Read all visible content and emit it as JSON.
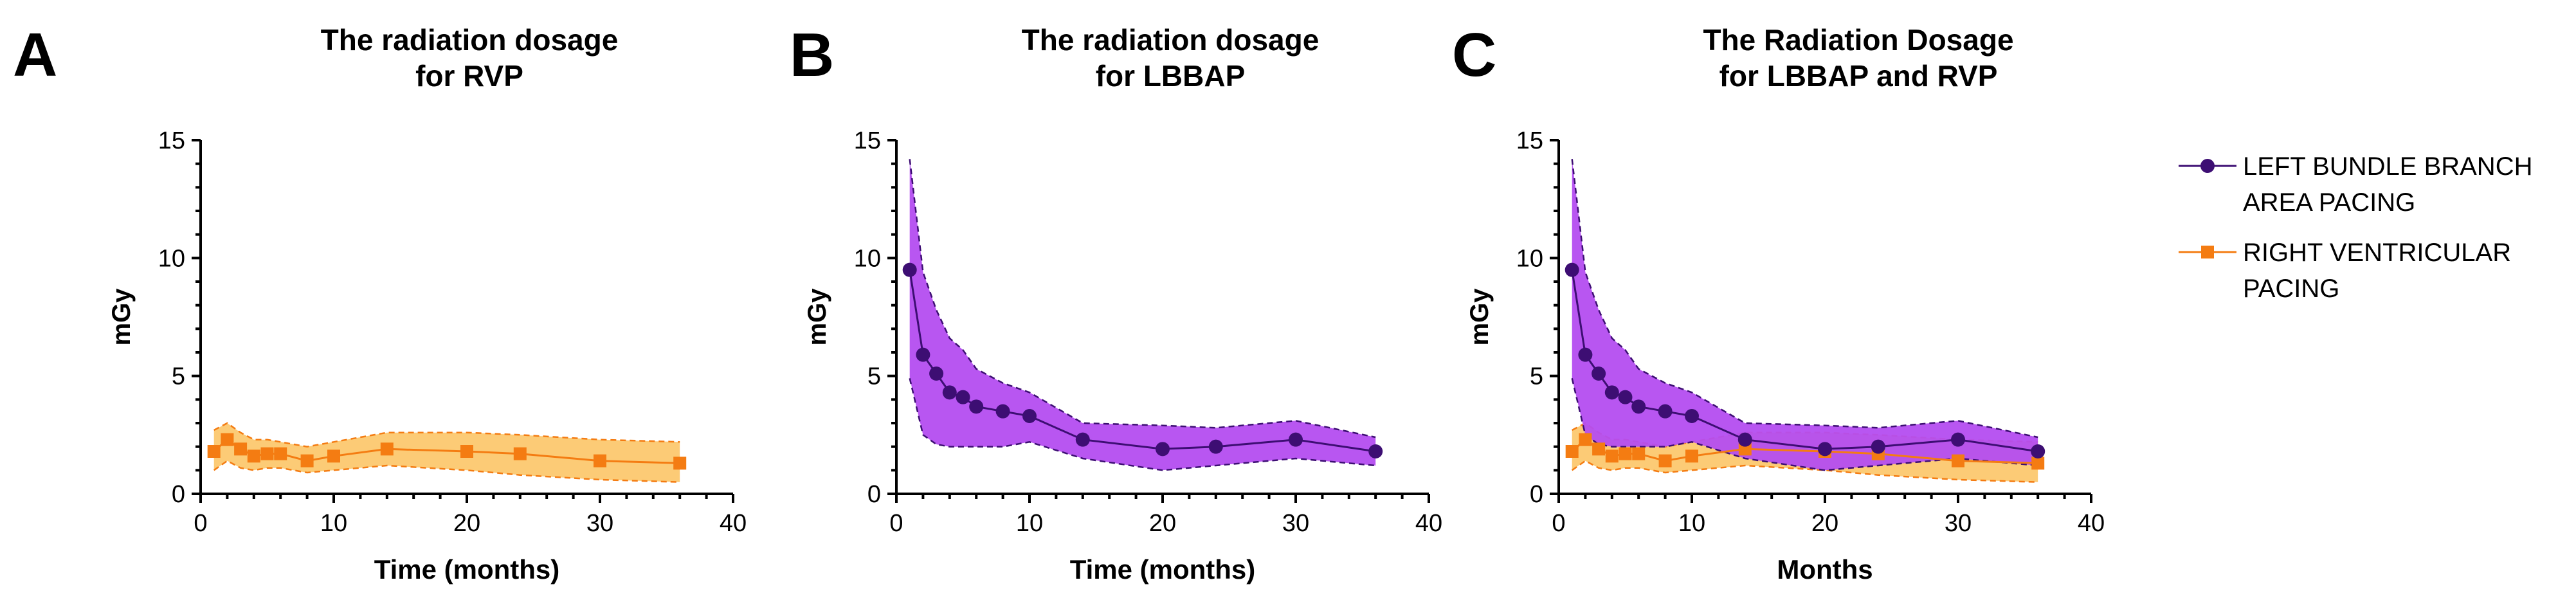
{
  "colors": {
    "lbbap_line": "#3d0e73",
    "lbbap_fill": "#b44df0",
    "rvp_line": "#f47c12",
    "rvp_fill": "#fcc25e",
    "axis": "#000000"
  },
  "legend": {
    "items": [
      {
        "series": "LBBAP",
        "marker": "circle",
        "lines": [
          "LEFT BUNDLE BRANCH",
          "AREA PACING"
        ]
      },
      {
        "series": "RVP",
        "marker": "square",
        "lines": [
          "RIGHT VENTRICULAR",
          "PACING"
        ]
      }
    ]
  },
  "chart_data": [
    {
      "type": "line",
      "panel_letter": "A",
      "title_lines": [
        "The radiation dosage",
        "for RVP"
      ],
      "xlabel": "Time (months)",
      "ylabel": "mGy",
      "xlim": [
        0,
        40
      ],
      "ylim": [
        0,
        15
      ],
      "xticks": [
        0,
        10,
        20,
        30,
        40
      ],
      "yticks": [
        0,
        5,
        10,
        15
      ],
      "series": [
        {
          "name": "RVP",
          "key": "rvp",
          "marker": "square",
          "x": [
            1,
            2,
            3,
            4,
            5,
            6,
            8,
            10,
            14,
            20,
            24,
            30,
            36
          ],
          "y": [
            1.8,
            2.3,
            1.9,
            1.6,
            1.7,
            1.7,
            1.4,
            1.6,
            1.9,
            1.8,
            1.7,
            1.4,
            1.3
          ],
          "upper": [
            2.7,
            3.0,
            2.6,
            2.3,
            2.3,
            2.2,
            2.0,
            2.2,
            2.6,
            2.6,
            2.5,
            2.3,
            2.2
          ],
          "lower": [
            1.0,
            1.4,
            1.1,
            1.0,
            1.1,
            1.1,
            0.9,
            1.0,
            1.2,
            1.0,
            0.8,
            0.6,
            0.5
          ]
        }
      ]
    },
    {
      "type": "line",
      "panel_letter": "B",
      "title_lines": [
        "The radiation dosage",
        "for LBBAP"
      ],
      "xlabel": "Time (months)",
      "ylabel": "mGy",
      "xlim": [
        0,
        40
      ],
      "ylim": [
        0,
        15
      ],
      "xticks": [
        0,
        10,
        20,
        30,
        40
      ],
      "yticks": [
        0,
        5,
        10,
        15
      ],
      "series": [
        {
          "name": "LBBAP",
          "key": "lbbap",
          "marker": "circle",
          "x": [
            1,
            2,
            3,
            4,
            5,
            6,
            8,
            10,
            14,
            20,
            24,
            30,
            36
          ],
          "y": [
            9.5,
            5.9,
            5.1,
            4.3,
            4.1,
            3.7,
            3.5,
            3.3,
            2.3,
            1.9,
            2.0,
            2.3,
            1.8
          ],
          "upper": [
            14.2,
            9.4,
            7.8,
            6.6,
            6.1,
            5.3,
            4.7,
            4.3,
            3.0,
            2.9,
            2.8,
            3.1,
            2.4
          ],
          "lower": [
            4.9,
            2.5,
            2.1,
            2.0,
            2.0,
            2.0,
            2.0,
            2.2,
            1.5,
            1.0,
            1.2,
            1.5,
            1.2
          ]
        }
      ]
    },
    {
      "type": "line",
      "panel_letter": "C",
      "title_lines": [
        "The Radiation Dosage",
        "for LBBAP and RVP"
      ],
      "xlabel": "Months",
      "ylabel": "mGy",
      "xlim": [
        0,
        40
      ],
      "ylim": [
        0,
        15
      ],
      "xticks": [
        0,
        10,
        20,
        30,
        40
      ],
      "yticks": [
        0,
        5,
        10,
        15
      ],
      "series": [
        {
          "name": "RVP",
          "key": "rvp",
          "marker": "square",
          "x": [
            1,
            2,
            3,
            4,
            5,
            6,
            8,
            10,
            14,
            20,
            24,
            30,
            36
          ],
          "y": [
            1.8,
            2.3,
            1.9,
            1.6,
            1.7,
            1.7,
            1.4,
            1.6,
            1.9,
            1.8,
            1.7,
            1.4,
            1.3
          ],
          "upper": [
            2.7,
            3.0,
            2.6,
            2.3,
            2.3,
            2.2,
            2.0,
            2.2,
            2.6,
            2.6,
            2.5,
            2.3,
            2.2
          ],
          "lower": [
            1.0,
            1.4,
            1.1,
            1.0,
            1.1,
            1.1,
            0.9,
            1.0,
            1.2,
            1.0,
            0.8,
            0.6,
            0.5
          ]
        },
        {
          "name": "LBBAP",
          "key": "lbbap",
          "marker": "circle",
          "x": [
            1,
            2,
            3,
            4,
            5,
            6,
            8,
            10,
            14,
            20,
            24,
            30,
            36
          ],
          "y": [
            9.5,
            5.9,
            5.1,
            4.3,
            4.1,
            3.7,
            3.5,
            3.3,
            2.3,
            1.9,
            2.0,
            2.3,
            1.8
          ],
          "upper": [
            14.2,
            9.4,
            7.8,
            6.6,
            6.1,
            5.3,
            4.7,
            4.3,
            3.0,
            2.9,
            2.8,
            3.1,
            2.4
          ],
          "lower": [
            4.9,
            2.5,
            2.1,
            2.0,
            2.0,
            2.0,
            2.0,
            2.2,
            1.5,
            1.0,
            1.2,
            1.5,
            1.2
          ]
        }
      ]
    }
  ]
}
